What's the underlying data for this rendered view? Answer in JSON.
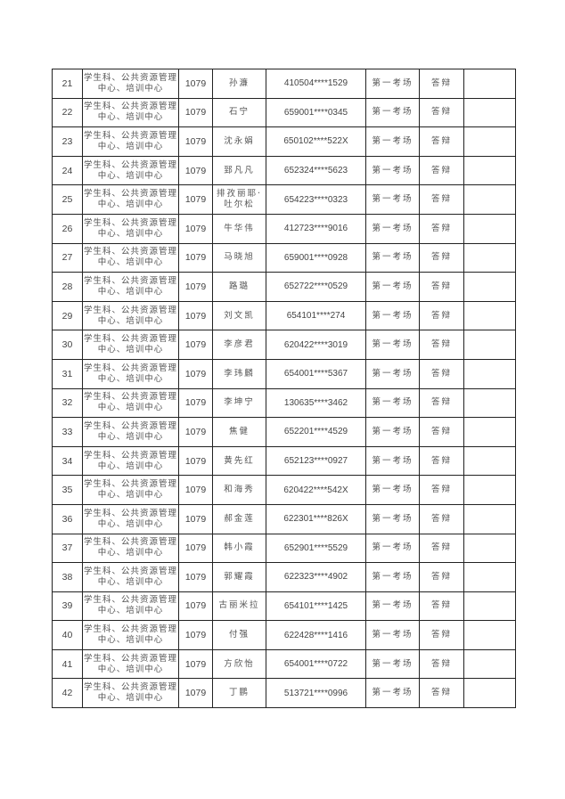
{
  "rows": [
    {
      "no": "21",
      "dept": "学生科、公共资源管理中心、培训中心",
      "code": "1079",
      "name": "孙濂",
      "id": "410504****1529",
      "room": "第一考场",
      "type": "答辩",
      "note": ""
    },
    {
      "no": "22",
      "dept": "学生科、公共资源管理中心、培训中心",
      "code": "1079",
      "name": "石宁",
      "id": "659001****0345",
      "room": "第一考场",
      "type": "答辩",
      "note": ""
    },
    {
      "no": "23",
      "dept": "学生科、公共资源管理中心、培训中心",
      "code": "1079",
      "name": "沈永娟",
      "id": "650102****522X",
      "room": "第一考场",
      "type": "答辩",
      "note": ""
    },
    {
      "no": "24",
      "dept": "学生科、公共资源管理中心、培训中心",
      "code": "1079",
      "name": "郅凡凡",
      "id": "652324****5623",
      "room": "第一考场",
      "type": "答辩",
      "note": ""
    },
    {
      "no": "25",
      "dept": "学生科、公共资源管理中心、培训中心",
      "code": "1079",
      "name": "排孜丽耶·吐尔松",
      "id": "654223****0323",
      "room": "第一考场",
      "type": "答辩",
      "note": ""
    },
    {
      "no": "26",
      "dept": "学生科、公共资源管理中心、培训中心",
      "code": "1079",
      "name": "牛华伟",
      "id": "412723****9016",
      "room": "第一考场",
      "type": "答辩",
      "note": ""
    },
    {
      "no": "27",
      "dept": "学生科、公共资源管理中心、培训中心",
      "code": "1079",
      "name": "马晓旭",
      "id": "659001****0928",
      "room": "第一考场",
      "type": "答辩",
      "note": ""
    },
    {
      "no": "28",
      "dept": "学生科、公共资源管理中心、培训中心",
      "code": "1079",
      "name": "路璐",
      "id": "652722****0529",
      "room": "第一考场",
      "type": "答辩",
      "note": ""
    },
    {
      "no": "29",
      "dept": "学生科、公共资源管理中心、培训中心",
      "code": "1079",
      "name": "刘文凯",
      "id": "654101****274",
      "room": "第一考场",
      "type": "答辩",
      "note": ""
    },
    {
      "no": "30",
      "dept": "学生科、公共资源管理中心、培训中心",
      "code": "1079",
      "name": "李彦君",
      "id": "620422****3019",
      "room": "第一考场",
      "type": "答辩",
      "note": ""
    },
    {
      "no": "31",
      "dept": "学生科、公共资源管理中心、培训中心",
      "code": "1079",
      "name": "李玮麟",
      "id": "654001****5367",
      "room": "第一考场",
      "type": "答辩",
      "note": ""
    },
    {
      "no": "32",
      "dept": "学生科、公共资源管理中心、培训中心",
      "code": "1079",
      "name": "李坤宁",
      "id": "130635****3462",
      "room": "第一考场",
      "type": "答辩",
      "note": ""
    },
    {
      "no": "33",
      "dept": "学生科、公共资源管理中心、培训中心",
      "code": "1079",
      "name": "焦健",
      "id": "652201****4529",
      "room": "第一考场",
      "type": "答辩",
      "note": ""
    },
    {
      "no": "34",
      "dept": "学生科、公共资源管理中心、培训中心",
      "code": "1079",
      "name": "黄先红",
      "id": "652123****0927",
      "room": "第一考场",
      "type": "答辩",
      "note": ""
    },
    {
      "no": "35",
      "dept": "学生科、公共资源管理中心、培训中心",
      "code": "1079",
      "name": "和海秀",
      "id": "620422****542X",
      "room": "第一考场",
      "type": "答辩",
      "note": ""
    },
    {
      "no": "36",
      "dept": "学生科、公共资源管理中心、培训中心",
      "code": "1079",
      "name": "郝金莲",
      "id": "622301****826X",
      "room": "第一考场",
      "type": "答辩",
      "note": ""
    },
    {
      "no": "37",
      "dept": "学生科、公共资源管理中心、培训中心",
      "code": "1079",
      "name": "韩小霞",
      "id": "652901****5529",
      "room": "第一考场",
      "type": "答辩",
      "note": ""
    },
    {
      "no": "38",
      "dept": "学生科、公共资源管理中心、培训中心",
      "code": "1079",
      "name": "郭耀霞",
      "id": "622323****4902",
      "room": "第一考场",
      "type": "答辩",
      "note": ""
    },
    {
      "no": "39",
      "dept": "学生科、公共资源管理中心、培训中心",
      "code": "1079",
      "name": "古丽米拉",
      "id": "654101****1425",
      "room": "第一考场",
      "type": "答辩",
      "note": ""
    },
    {
      "no": "40",
      "dept": "学生科、公共资源管理中心、培训中心",
      "code": "1079",
      "name": "付强",
      "id": "622428****1416",
      "room": "第一考场",
      "type": "答辩",
      "note": ""
    },
    {
      "no": "41",
      "dept": "学生科、公共资源管理中心、培训中心",
      "code": "1079",
      "name": "方欣怡",
      "id": "654001****0722",
      "room": "第一考场",
      "type": "答辩",
      "note": ""
    },
    {
      "no": "42",
      "dept": "学生科、公共资源管理中心、培训中心",
      "code": "1079",
      "name": "丁鹏",
      "id": "513721****0996",
      "room": "第一考场",
      "type": "答辩",
      "note": ""
    }
  ]
}
